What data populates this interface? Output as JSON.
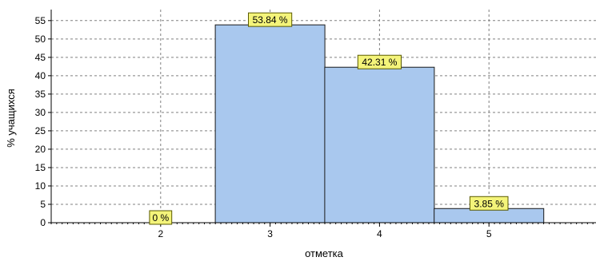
{
  "chart_data": {
    "type": "bar",
    "title": "",
    "xlabel": "отметка",
    "ylabel": "% учащихся",
    "categories": [
      "2",
      "3",
      "4",
      "5"
    ],
    "values": [
      0,
      53.84,
      42.31,
      3.85
    ],
    "data_labels": [
      "0 %",
      "53.84 %",
      "42.31 %",
      "3.85 %"
    ],
    "ylim": [
      0,
      58
    ],
    "y_ticks": [
      0,
      5,
      10,
      15,
      20,
      25,
      30,
      35,
      40,
      45,
      50,
      55
    ],
    "grid": true,
    "legend": "none",
    "colors": {
      "bar_fill": "#a9c8ee",
      "bar_stroke": "#1a1a1a",
      "label_fill": "#f4f47a",
      "label_stroke": "#5a5a00",
      "grid": "#808080",
      "axis": "#000000"
    }
  }
}
